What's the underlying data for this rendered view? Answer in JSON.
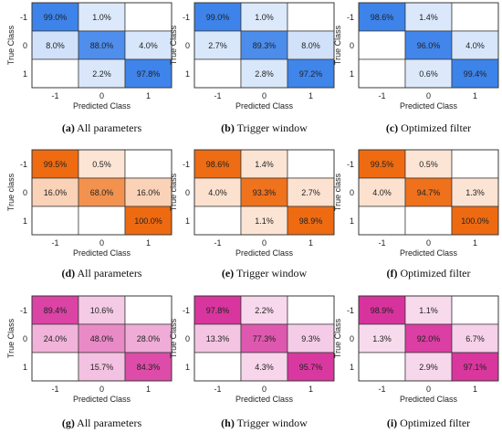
{
  "colors": {
    "blue": "#3b82ea",
    "orange": "#ee6a10",
    "magenta": "#d8319c",
    "border": "#333333",
    "text": "#222222"
  },
  "chart_data": [
    {
      "type": "heatmap",
      "color": "blue",
      "caption_letter": "(a)",
      "caption_text": "All parameters",
      "xlabel": "Predicted Class",
      "ylabel": "True Class",
      "x_ticks": [
        "-1",
        "0",
        "1"
      ],
      "y_ticks": [
        "-1",
        "0",
        "1"
      ],
      "values": [
        [
          99.0,
          1.0,
          null
        ],
        [
          8.0,
          88.0,
          4.0
        ],
        [
          null,
          2.2,
          97.8
        ]
      ],
      "labels": [
        [
          "99.0%",
          "1.0%",
          ""
        ],
        [
          "8.0%",
          "88.0%",
          "4.0%"
        ],
        [
          "",
          "2.2%",
          "97.8%"
        ]
      ]
    },
    {
      "type": "heatmap",
      "color": "blue",
      "caption_letter": "(b)",
      "caption_text": "Trigger window",
      "xlabel": "Predicted Class",
      "ylabel": "True Class",
      "x_ticks": [
        "-1",
        "0",
        "1"
      ],
      "y_ticks": [
        "-1",
        "0",
        "1"
      ],
      "values": [
        [
          99.0,
          1.0,
          null
        ],
        [
          2.7,
          89.3,
          8.0
        ],
        [
          null,
          2.8,
          97.2
        ]
      ],
      "labels": [
        [
          "99.0%",
          "1.0%",
          ""
        ],
        [
          "2.7%",
          "89.3%",
          "8.0%"
        ],
        [
          "",
          "2.8%",
          "97.2%"
        ]
      ]
    },
    {
      "type": "heatmap",
      "color": "blue",
      "caption_letter": "(c)",
      "caption_text": "Optimized filter",
      "xlabel": "Predicted Class",
      "ylabel": "True Class",
      "x_ticks": [
        "-1",
        "0",
        "1"
      ],
      "y_ticks": [
        "-1",
        "0",
        "1"
      ],
      "values": [
        [
          98.6,
          1.4,
          null
        ],
        [
          null,
          96.0,
          4.0
        ],
        [
          null,
          0.6,
          99.4
        ]
      ],
      "labels": [
        [
          "98.6%",
          "1.4%",
          ""
        ],
        [
          "",
          "96.0%",
          "4.0%"
        ],
        [
          "",
          "0.6%",
          "99.4%"
        ]
      ]
    },
    {
      "type": "heatmap",
      "color": "orange",
      "caption_letter": "(d)",
      "caption_text": "All parameters",
      "xlabel": "Predicted Class",
      "ylabel": "True class",
      "x_ticks": [
        "-1",
        "0",
        "1"
      ],
      "y_ticks": [
        "-1",
        "0",
        "1"
      ],
      "values": [
        [
          99.5,
          0.5,
          null
        ],
        [
          16.0,
          68.0,
          16.0
        ],
        [
          null,
          null,
          100.0
        ]
      ],
      "labels": [
        [
          "99.5%",
          "0.5%",
          ""
        ],
        [
          "16.0%",
          "68.0%",
          "16.0%"
        ],
        [
          "",
          "",
          "100.0%"
        ]
      ]
    },
    {
      "type": "heatmap",
      "color": "orange",
      "caption_letter": "(e)",
      "caption_text": "Trigger window",
      "xlabel": "Predicted Class",
      "ylabel": "True class",
      "x_ticks": [
        "-1",
        "0",
        "1"
      ],
      "y_ticks": [
        "-1",
        "0",
        "1"
      ],
      "values": [
        [
          98.6,
          1.4,
          null
        ],
        [
          4.0,
          93.3,
          2.7
        ],
        [
          null,
          1.1,
          98.9
        ]
      ],
      "labels": [
        [
          "98.6%",
          "1.4%",
          ""
        ],
        [
          "4.0%",
          "93.3%",
          "2.7%"
        ],
        [
          "",
          "1.1%",
          "98.9%"
        ]
      ]
    },
    {
      "type": "heatmap",
      "color": "orange",
      "caption_letter": "(f)",
      "caption_text": "Optimized filter",
      "xlabel": "Predicted Class",
      "ylabel": "True class",
      "x_ticks": [
        "-1",
        "0",
        "1"
      ],
      "y_ticks": [
        "-1",
        "0",
        "1"
      ],
      "values": [
        [
          99.5,
          0.5,
          null
        ],
        [
          4.0,
          94.7,
          1.3
        ],
        [
          null,
          null,
          100.0
        ]
      ],
      "labels": [
        [
          "99.5%",
          "0.5%",
          ""
        ],
        [
          "4.0%",
          "94.7%",
          "1.3%"
        ],
        [
          "",
          "",
          "100.0%"
        ]
      ]
    },
    {
      "type": "heatmap",
      "color": "magenta",
      "caption_letter": "(g)",
      "caption_text": "All parameters",
      "xlabel": "Predicted Class",
      "ylabel": "True Class",
      "x_ticks": [
        "-1",
        "0",
        "1"
      ],
      "y_ticks": [
        "-1",
        "0",
        "1"
      ],
      "values": [
        [
          89.4,
          10.6,
          null
        ],
        [
          24.0,
          48.0,
          28.0
        ],
        [
          null,
          15.7,
          84.3
        ]
      ],
      "labels": [
        [
          "89.4%",
          "10.6%",
          ""
        ],
        [
          "24.0%",
          "48.0%",
          "28.0%"
        ],
        [
          "",
          "15.7%",
          "84.3%"
        ]
      ]
    },
    {
      "type": "heatmap",
      "color": "magenta",
      "caption_letter": "(h)",
      "caption_text": "Trigger window",
      "xlabel": "Predicted Class",
      "ylabel": "True Class",
      "x_ticks": [
        "-1",
        "0",
        "1"
      ],
      "y_ticks": [
        "-1",
        "0",
        "1"
      ],
      "values": [
        [
          97.8,
          2.2,
          null
        ],
        [
          13.3,
          77.3,
          9.3
        ],
        [
          null,
          4.3,
          95.7
        ]
      ],
      "labels": [
        [
          "97.8%",
          "2.2%",
          ""
        ],
        [
          "13.3%",
          "77.3%",
          "9.3%"
        ],
        [
          "",
          "4.3%",
          "95.7%"
        ]
      ]
    },
    {
      "type": "heatmap",
      "color": "magenta",
      "caption_letter": "(i)",
      "caption_text": "Optimized filter",
      "xlabel": "Predicted Class",
      "ylabel": "True Class",
      "x_ticks": [
        "-1",
        "0",
        "1"
      ],
      "y_ticks": [
        "-1",
        "0",
        "1"
      ],
      "values": [
        [
          98.9,
          1.1,
          null
        ],
        [
          1.3,
          92.0,
          6.7
        ],
        [
          null,
          2.9,
          97.1
        ]
      ],
      "labels": [
        [
          "98.9%",
          "1.1%",
          ""
        ],
        [
          "1.3%",
          "92.0%",
          "6.7%"
        ],
        [
          "",
          "2.9%",
          "97.1%"
        ]
      ]
    }
  ]
}
